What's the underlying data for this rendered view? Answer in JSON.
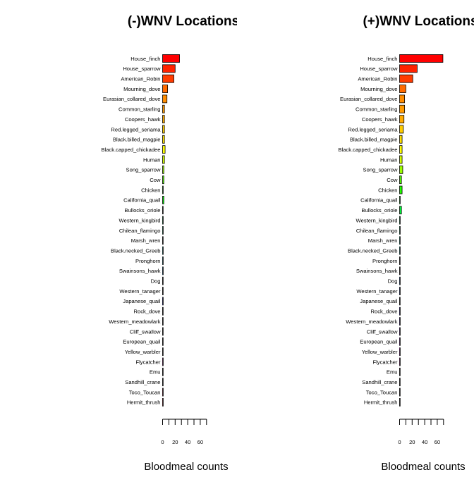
{
  "chart_data": [
    {
      "type": "bar",
      "orientation": "horizontal",
      "title": "(-)WNV Locations",
      "xlabel": "Bloodmeal counts",
      "ylabel": "",
      "xlim": [
        0,
        70
      ],
      "xticks": [
        0,
        20,
        40,
        60
      ],
      "categories": [
        "House_finch",
        "House_sparrow",
        "American_Robin",
        "Mourning_dove",
        "Eurasian_collared_dove",
        "Common_starling",
        "Coopers_hawk",
        "Red.legged_seriama",
        "Black.billed_magpie",
        "Black.capped_chickadee",
        "Human",
        "Song_sparrow",
        "Cow",
        "Chicken",
        "California_quail",
        "Bullocks_oriole",
        "Western_kingbird",
        "Chilean_flamingo",
        "Marsh_wren",
        "Black.necked_Greeb",
        "Pronghorn",
        "Swainsons_hawk",
        "Dog",
        "Western_tanager",
        "Japanese_quail",
        "Rock_dove",
        "Western_meadowlark",
        "Cliff_swallow",
        "European_quail",
        "Yellow_warbler",
        "Flycatcher",
        "Emu",
        "Sandhill_crane",
        "Toco_Toucan",
        "Hermit_thrush"
      ],
      "values": [
        27,
        20,
        18,
        8,
        7,
        3,
        3,
        3,
        3,
        4,
        3,
        2,
        2,
        1,
        2,
        0,
        1,
        1,
        0,
        1,
        1,
        1,
        0,
        0,
        1,
        0,
        0,
        0,
        0,
        0,
        1,
        0,
        0,
        1,
        1
      ],
      "colors": [
        "#ff0000",
        "#ff2200",
        "#ff3b00",
        "#ff6a00",
        "#ff8c00",
        "#ff9a00",
        "#ffaa00",
        "#ffcc00",
        "#ffe000",
        "#ffff00",
        "#d4ff00",
        "#9cff00",
        "#55ff00",
        "#22ff00",
        "#00ff00",
        "#00ff3c",
        "#00ff70",
        "#00ffa0",
        "#00ffd0",
        "#00ffff",
        "#00d0ff",
        "#00a0ff",
        "#0070ff",
        "#0040ff",
        "#0010ff",
        "#2000ff",
        "#5000ff",
        "#8000ff",
        "#b000ff",
        "#e000ff",
        "#ff00e0",
        "#ff00b0",
        "#ff0080",
        "#ff0050",
        "#ff0020"
      ],
      "grid": false
    },
    {
      "type": "bar",
      "orientation": "horizontal",
      "title": "(+)WNV Locations",
      "xlabel": "Bloodmeal counts",
      "ylabel": "",
      "xlim": [
        0,
        70
      ],
      "xticks": [
        0,
        20,
        40,
        60
      ],
      "categories": [
        "House_finch",
        "House_sparrow",
        "American_Robin",
        "Mourning_dove",
        "Eurasian_collared_dove",
        "Common_starling",
        "Coopers_hawk",
        "Red.legged_seriama",
        "Black.billed_magpie",
        "Black.capped_chickadee",
        "Human",
        "Song_sparrow",
        "Cow",
        "Chicken",
        "California_quail",
        "Bullocks_oriole",
        "Western_kingbird",
        "Chilean_flamingo",
        "Marsh_wren",
        "Black.necked_Greeb",
        "Pronghorn",
        "Swainsons_hawk",
        "Dog",
        "Western_tanager",
        "Japanese_quail",
        "Rock_dove",
        "Western_meadowlark",
        "Cliff_swallow",
        "European_quail",
        "Yellow_warbler",
        "Flycatcher",
        "Emu",
        "Sandhill_crane",
        "Toco_Toucan",
        "Hermit_thrush"
      ],
      "values": [
        69,
        28,
        21,
        10,
        8,
        8,
        7,
        6,
        4,
        4,
        4,
        5,
        3,
        4,
        1,
        3,
        1,
        1,
        1,
        1,
        0,
        0,
        1,
        1,
        0,
        1,
        1,
        1,
        1,
        1,
        1,
        0,
        0,
        0,
        0
      ],
      "colors": [
        "#ff0000",
        "#ff2200",
        "#ff3b00",
        "#ff6a00",
        "#ff8c00",
        "#ff9a00",
        "#ffaa00",
        "#ffcc00",
        "#ffe000",
        "#ffff00",
        "#d4ff00",
        "#9cff00",
        "#55ff00",
        "#22ff00",
        "#00ff00",
        "#00ff3c",
        "#00ff70",
        "#00ffa0",
        "#00ffd0",
        "#00ffff",
        "#00d0ff",
        "#00a0ff",
        "#0070ff",
        "#0040ff",
        "#0010ff",
        "#2000ff",
        "#5000ff",
        "#8000ff",
        "#b000ff",
        "#e000ff",
        "#ff00e0",
        "#ff00b0",
        "#ff0080",
        "#ff0050",
        "#ff0020"
      ],
      "grid": false
    }
  ]
}
